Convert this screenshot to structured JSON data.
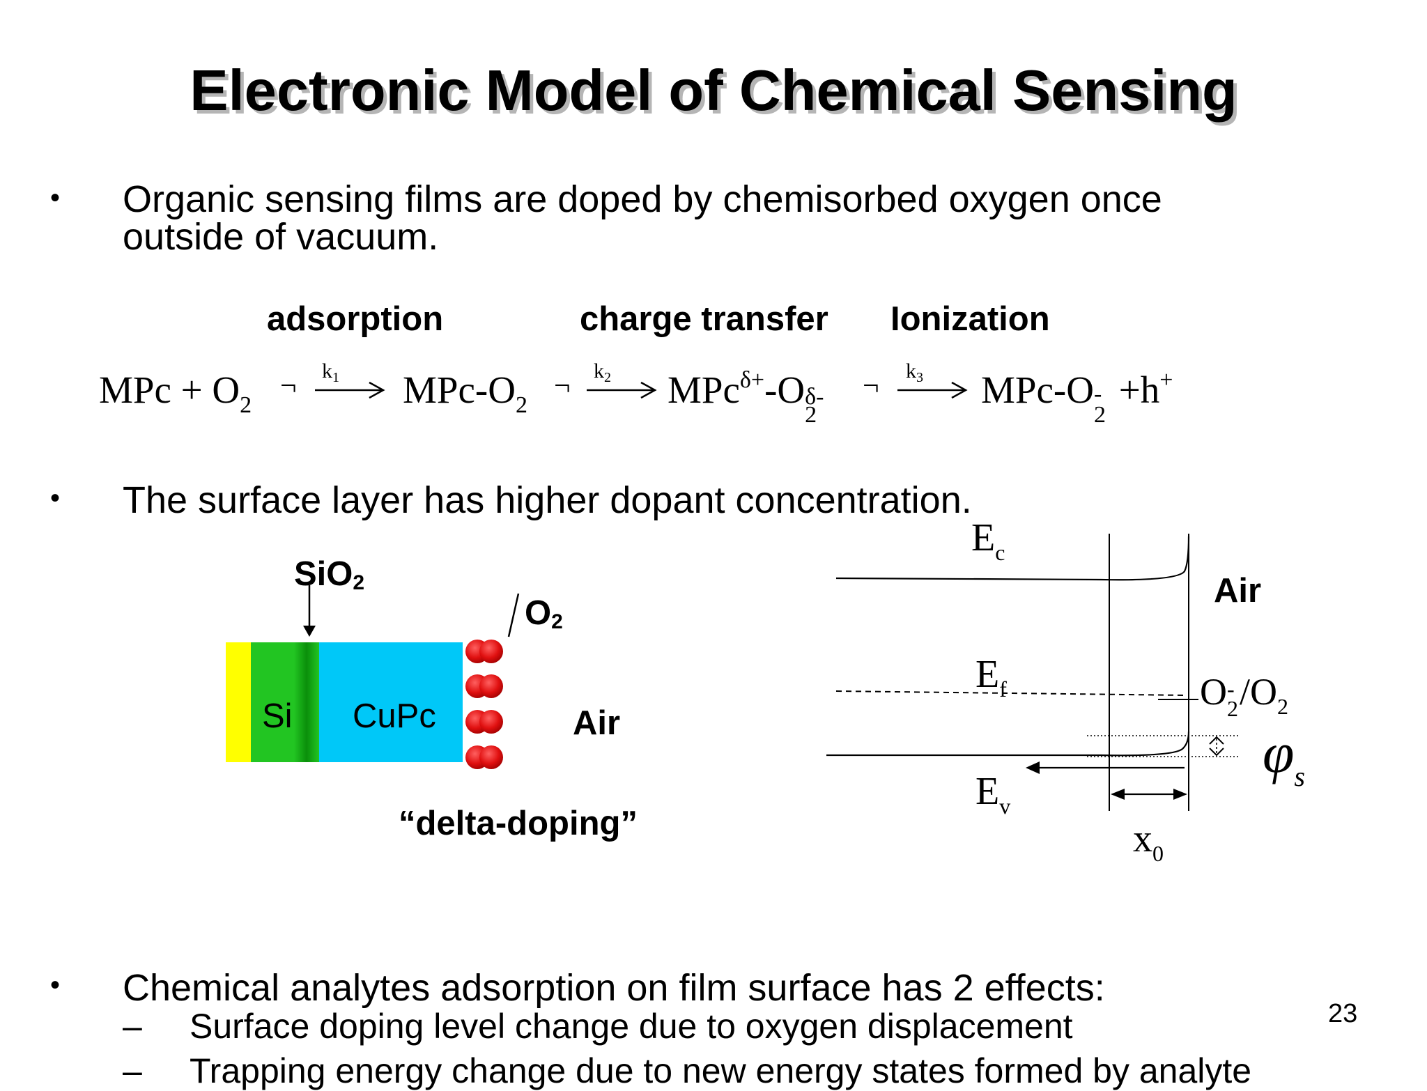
{
  "slide": {
    "title": "Electronic Model of Chemical Sensing",
    "page_number": "23",
    "bullet_symbol": "•",
    "dash_symbol": "–",
    "bullets": [
      {
        "line1": "Organic sensing films are doped by chemisorbed oxygen once",
        "line2": "outside of vacuum."
      },
      {
        "line1": "The surface layer has higher dopant concentration."
      },
      {
        "line1": "Chemical analytes adsorption on film surface has 2 effects:"
      }
    ],
    "sub_bullets": [
      "Surface doping level change due to oxygen displacement",
      "Trapping energy change due to new energy states formed by analyte"
    ]
  },
  "reaction": {
    "labels": {
      "adsorption": "adsorption",
      "charge_transfer": "charge transfer",
      "ionization": "Ionization"
    },
    "terms": {
      "t1a": "MPc + O",
      "t1sub": "2",
      "t2a": "MPc-O",
      "t2sub": "2",
      "t3a": "MPc",
      "t3sup": "δ+",
      "t3b": "-O",
      "t3sub": "2",
      "t3sup2": "δ-",
      "t4a": "MPc-O",
      "t4sub": "2",
      "t4sup": "-",
      "t4b": " +h",
      "t4sup2": "+"
    },
    "rates": {
      "k1": "k",
      "k1sub": "1",
      "k2": "k",
      "k2sub": "2",
      "k3": "k",
      "k3sub": "3"
    },
    "arrow_prefix": "¬"
  },
  "film_diagram": {
    "sio2": "SiO",
    "sio2_sub": "2",
    "o2": "O",
    "o2_sub": "2",
    "si": "Si",
    "cupc": "CuPc",
    "air": "Air",
    "caption": "“delta-doping”",
    "colors": {
      "yellow": "#ffff00",
      "si": "#22c522",
      "sio2": "#0c9c0c",
      "cupc": "#00c8f8",
      "o2": "#e01010"
    }
  },
  "band_diagram": {
    "ec": "E",
    "ec_sub": "c",
    "ef": "E",
    "ef_sub": "f",
    "ev": "E",
    "ev_sub": "v",
    "air": "Air",
    "o2_redox": {
      "a": "O",
      "a_sub": "2",
      "a_sup": "-",
      "b": "/O",
      "b_sub": "2"
    },
    "phi": "φ",
    "phi_sub": "s",
    "x0": "x",
    "x0_sub": "0"
  }
}
